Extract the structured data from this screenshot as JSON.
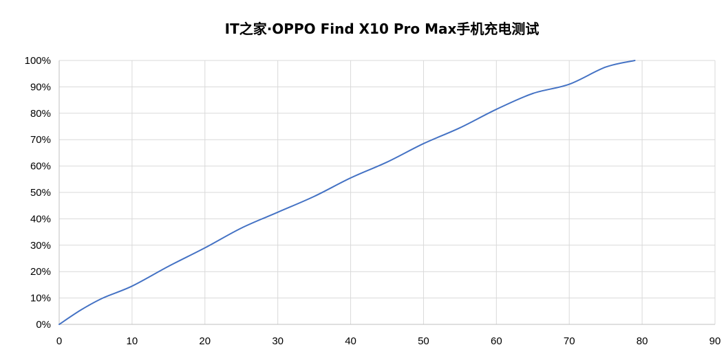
{
  "chart_data": {
    "type": "line",
    "title": "IT之家·OPPO Find X10 Pro Max手机充电测试",
    "xlabel": "",
    "ylabel": "",
    "xlim": [
      0,
      90
    ],
    "ylim": [
      0,
      100
    ],
    "x_ticks": [
      0,
      10,
      20,
      30,
      40,
      50,
      60,
      70,
      80,
      90
    ],
    "y_ticks": [
      0,
      10,
      20,
      30,
      40,
      50,
      60,
      70,
      80,
      90,
      100
    ],
    "y_tick_format": "percent",
    "grid": true,
    "legend": "none",
    "series": [
      {
        "color": "#4472C4",
        "x": [
          0,
          3,
          6,
          10,
          15,
          20,
          25,
          30,
          35,
          40,
          45,
          50,
          55,
          60,
          65,
          70,
          75,
          79
        ],
        "y": [
          0,
          5.5,
          10,
          14.5,
          22,
          29,
          36.5,
          42.5,
          48.5,
          55.5,
          61.5,
          68.5,
          74.5,
          81.5,
          87.5,
          91,
          97.5,
          100
        ]
      }
    ]
  }
}
